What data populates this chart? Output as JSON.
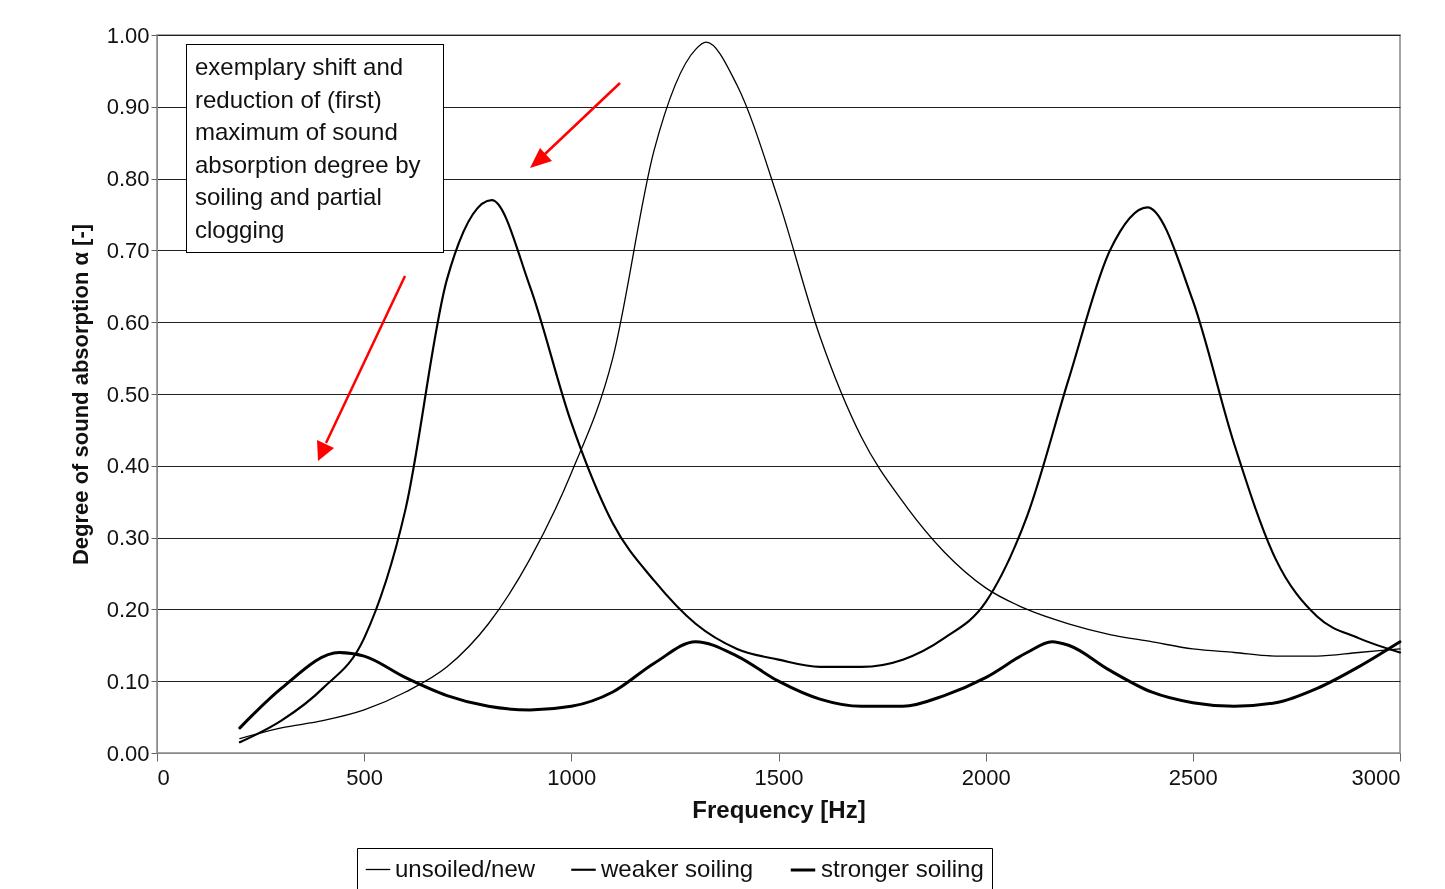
{
  "chart_data": {
    "type": "line",
    "xlabel": "Frequency [Hz]",
    "ylabel": "Degree of sound absorption α [-]",
    "xlim": [
      0,
      3000
    ],
    "xticks": [
      0,
      500,
      1000,
      1500,
      2000,
      2500,
      3000
    ],
    "ylim": [
      0,
      1
    ],
    "yticks": [
      {
        "value": 0,
        "label": "0.00"
      },
      {
        "value": 0.1,
        "label": "0.10"
      },
      {
        "value": 0.2,
        "label": "0.20"
      },
      {
        "value": 0.3,
        "label": "0.30"
      },
      {
        "value": 0.4,
        "label": "0.40"
      },
      {
        "value": 0.5,
        "label": "0.50"
      },
      {
        "value": 0.6,
        "label": "0.60"
      },
      {
        "value": 0.7,
        "label": "0.70"
      },
      {
        "value": 0.8,
        "label": "0.80"
      },
      {
        "value": 0.9,
        "label": "0.90"
      },
      {
        "value": 1,
        "label": "1.00"
      }
    ],
    "grid": "y",
    "legend": "bottom",
    "line_style": "solid",
    "marker": "none",
    "annotations": [
      "exemplary shift and reduction of (first) maximum of sound absorption degree by soiling and partial clogging"
    ],
    "series": [
      {
        "name": "unsoiled/new",
        "color": "#000000",
        "x": [
          200,
          300,
          400,
          500,
          600,
          700,
          800,
          900,
          1000,
          1100,
          1200,
          1300,
          1325,
          1400,
          1500,
          1600,
          1700,
          1800,
          1900,
          2000,
          2100,
          2200,
          2300,
          2400,
          2500,
          2600,
          2700,
          2800,
          2900,
          3000
        ],
        "values": [
          0.02,
          0.035,
          0.045,
          0.06,
          0.085,
          0.12,
          0.18,
          0.27,
          0.39,
          0.55,
          0.84,
          0.98,
          0.99,
          0.93,
          0.77,
          0.58,
          0.44,
          0.35,
          0.28,
          0.23,
          0.2,
          0.18,
          0.165,
          0.155,
          0.145,
          0.14,
          0.135,
          0.135,
          0.14,
          0.145
        ]
      },
      {
        "name": "weaker soiling",
        "color": "#000000",
        "x": [
          200,
          300,
          400,
          500,
          600,
          700,
          808,
          900,
          1000,
          1100,
          1200,
          1300,
          1400,
          1500,
          1600,
          1700,
          1800,
          1900,
          2000,
          2100,
          2200,
          2300,
          2390,
          2500,
          2600,
          2700,
          2800,
          2900,
          3000
        ],
        "values": [
          0.015,
          0.045,
          0.09,
          0.16,
          0.34,
          0.66,
          0.77,
          0.65,
          0.46,
          0.32,
          0.24,
          0.18,
          0.145,
          0.13,
          0.12,
          0.12,
          0.13,
          0.16,
          0.21,
          0.33,
          0.52,
          0.7,
          0.76,
          0.63,
          0.43,
          0.27,
          0.19,
          0.16,
          0.14
        ]
      },
      {
        "name": "stronger soiling",
        "color": "#000000",
        "x": [
          200,
          300,
          440,
          500,
          600,
          700,
          800,
          900,
          1000,
          1100,
          1200,
          1300,
          1400,
          1500,
          1600,
          1700,
          1800,
          1900,
          2000,
          2100,
          2160,
          2200,
          2300,
          2400,
          2500,
          2600,
          2700,
          2800,
          2900,
          3000
        ],
        "values": [
          0.035,
          0.09,
          0.14,
          0.135,
          0.105,
          0.08,
          0.065,
          0.06,
          0.065,
          0.085,
          0.125,
          0.155,
          0.135,
          0.1,
          0.075,
          0.065,
          0.065,
          0.08,
          0.105,
          0.14,
          0.155,
          0.15,
          0.115,
          0.085,
          0.07,
          0.065,
          0.07,
          0.09,
          0.12,
          0.155
        ]
      }
    ]
  }
}
